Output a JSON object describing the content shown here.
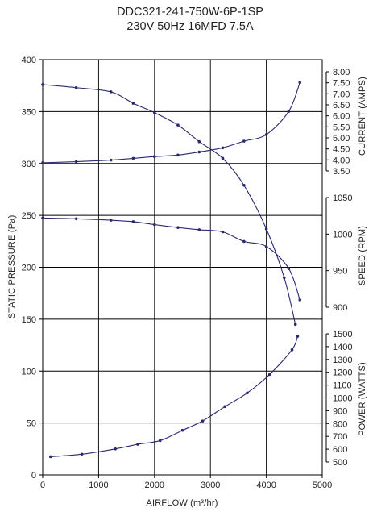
{
  "chart_data": {
    "type": "line",
    "title": "DDC321-241-750W-6P-1SP",
    "subtitle": "230V 50Hz 16MFD 7.5A",
    "xlabel": "AIRFLOW (m³/hr)",
    "xlim": [
      0,
      5000
    ],
    "x_ticks": [
      "0",
      "1000",
      "2000",
      "3000",
      "4000",
      "5000"
    ],
    "ylabel": "STATIC PRESSURE (Pa)",
    "ylim": [
      0,
      400
    ],
    "y_ticks": [
      "0",
      "50",
      "100",
      "150",
      "200",
      "250",
      "300",
      "350",
      "400"
    ],
    "right_axes": [
      {
        "label": "CURRENT (AMPS)",
        "range": [
          3.5,
          8.0
        ],
        "ticks": [
          "3.50",
          "4.00",
          "4.50",
          "5.00",
          "5.50",
          "6.00",
          "6.50",
          "7.00",
          "7.50",
          "8.00"
        ]
      },
      {
        "label": "SPEED (RPM)",
        "range": [
          900,
          1050
        ],
        "ticks": [
          "900",
          "950",
          "1000",
          "1050"
        ]
      },
      {
        "label": "POWER (WATTS)",
        "range": [
          500,
          1500
        ],
        "ticks": [
          "500",
          "600",
          "700",
          "800",
          "900",
          "1000",
          "1100",
          "1200",
          "1300",
          "1400",
          "1500"
        ]
      }
    ],
    "grid": true,
    "series": [
      {
        "axis": "ylabel",
        "x": [
          0,
          600,
          1220,
          1620,
          2000,
          2420,
          2800,
          3220,
          3600,
          4000,
          4320,
          4520
        ],
        "y": [
          376,
          373,
          369,
          358,
          349,
          337,
          321,
          305,
          279,
          237,
          190,
          145
        ]
      },
      {
        "axis": "CURRENT (AMPS)",
        "x": [
          0,
          600,
          1220,
          1620,
          2000,
          2420,
          2800,
          3220,
          3600,
          4000,
          4400,
          4600
        ],
        "y": [
          3.87,
          3.92,
          3.99,
          4.07,
          4.15,
          4.22,
          4.36,
          4.55,
          4.85,
          5.15,
          6.2,
          7.51
        ]
      },
      {
        "axis": "SPEED (RPM)",
        "x": [
          0,
          600,
          1220,
          1620,
          2000,
          2420,
          2800,
          3220,
          3600,
          4000,
          4400,
          4600
        ],
        "y": [
          1022,
          1021,
          1019,
          1017,
          1013,
          1009,
          1006,
          1003,
          990,
          983,
          953,
          910
        ]
      },
      {
        "axis": "POWER (WATTS)",
        "x": [
          140,
          700,
          1300,
          1700,
          2100,
          2500,
          2860,
          3260,
          3660,
          4060,
          4460,
          4560
        ],
        "y": [
          541,
          561,
          602,
          638,
          667,
          747,
          820,
          932,
          1039,
          1183,
          1376,
          1481
        ]
      }
    ]
  }
}
